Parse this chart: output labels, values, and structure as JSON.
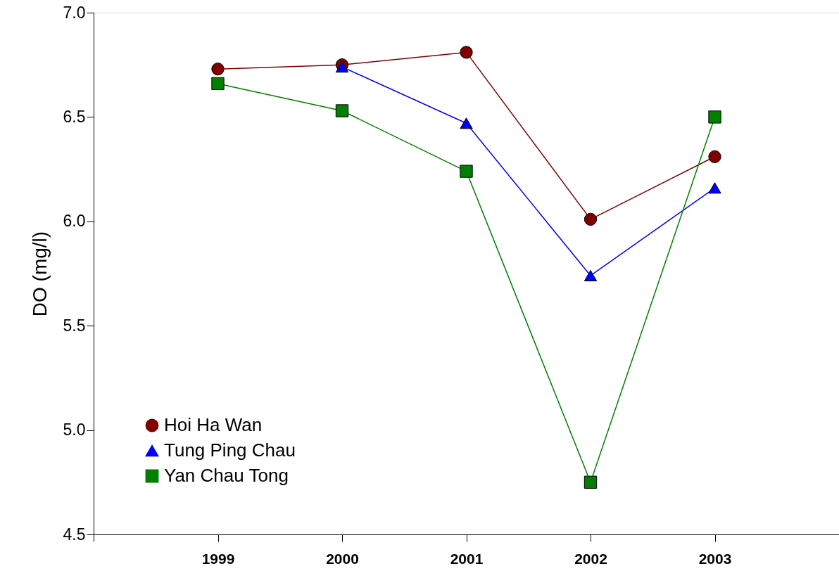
{
  "chart_data": {
    "type": "line",
    "ylabel": "DO (mg/l)",
    "x": [
      1999,
      2000,
      2001,
      2002,
      2003
    ],
    "xlim": [
      1998,
      2004
    ],
    "xticks": [
      {
        "value": 1998,
        "label": null
      },
      1999,
      2000,
      2001,
      2002,
      2003,
      {
        "value": 2004,
        "label": null
      }
    ],
    "ylim": [
      4.5,
      7.0
    ],
    "yticks": [
      4.5,
      {
        "value": 5,
        "label": "5.0"
      },
      5.5,
      {
        "value": 6,
        "label": "6.0"
      },
      6.5,
      {
        "value": 7,
        "label": "7.0"
      }
    ],
    "line_style": "solid",
    "grid": false,
    "legend": "bottom left",
    "series": [
      {
        "name": "Hoi Ha Wan",
        "color": "#800000",
        "marker": "circle",
        "values": [
          6.73,
          6.75,
          6.81,
          6.01,
          6.31
        ]
      },
      {
        "name": "Tung Ping Chau",
        "color": "#0000ff",
        "marker": "triangle",
        "values": [
          null,
          6.74,
          6.47,
          5.74,
          6.16
        ]
      },
      {
        "name": "Yan Chau Tong",
        "color": "#008000",
        "marker": "square",
        "values": [
          6.66,
          6.53,
          6.24,
          4.75,
          6.5
        ]
      }
    ]
  }
}
